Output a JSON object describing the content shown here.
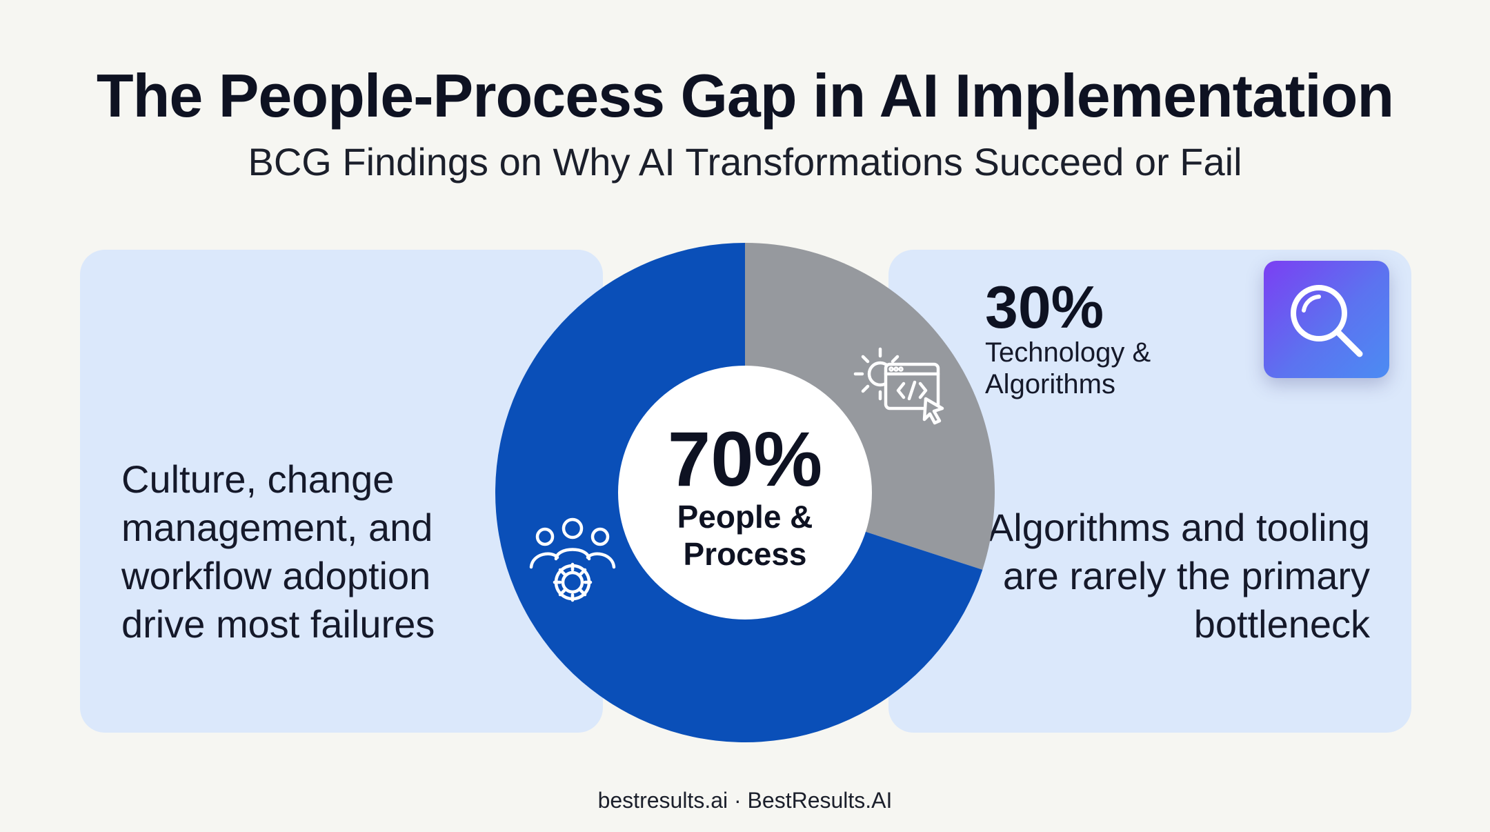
{
  "header": {
    "title": "The People-Process Gap in AI Implementation",
    "subtitle": "BCG Findings on Why AI Transformations Succeed or Fail"
  },
  "chart_data": {
    "type": "pie",
    "title": "The People-Process Gap in AI Implementation",
    "subtitle": "BCG Findings on Why AI Transformations Succeed or Fail",
    "slices": [
      {
        "label": "People & Process",
        "value": 70,
        "display": "70%",
        "color": "#0a4fb8",
        "icon": "people-gear-icon"
      },
      {
        "label": "Technology & Algorithms",
        "value": 30,
        "display": "30%",
        "color": "#96999e",
        "icon": "code-window-gear-icon"
      }
    ]
  },
  "left_panel": {
    "text": "Culture, change management, and workflow adoption drive most failures"
  },
  "right_panel": {
    "pct": "30%",
    "label": "Technology & Algorithms",
    "text": "Algorithms and tooling are rarely the primary bottleneck",
    "badge_icon": "search-icon"
  },
  "center": {
    "pct": "70%",
    "label": "People & Process"
  },
  "footer": {
    "text": "bestresults.ai · BestResults.AI"
  }
}
